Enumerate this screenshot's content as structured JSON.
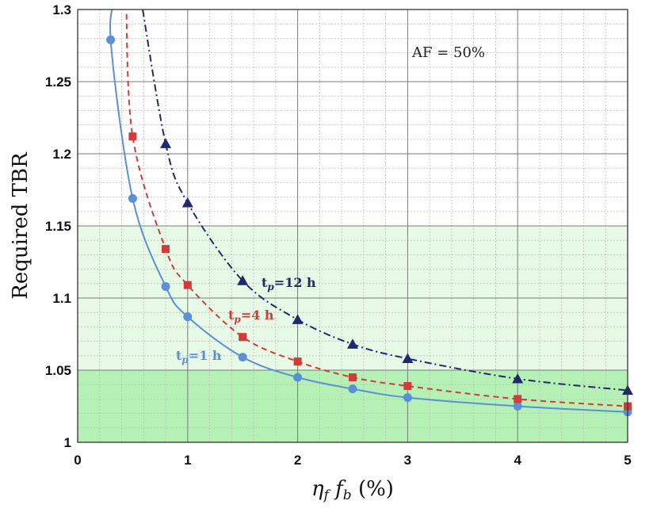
{
  "chart_data": {
    "type": "line",
    "title": "",
    "xlabel": "η_f f_b (%)",
    "ylabel": "Required TBR",
    "xlim": [
      0,
      5
    ],
    "ylim": [
      1,
      1.3
    ],
    "xticks": [
      "0",
      "1",
      "2",
      "3",
      "4",
      "5"
    ],
    "yticks": [
      "1",
      "1.05",
      "1.1",
      "1.15",
      "1.2",
      "1.25",
      "1.3"
    ],
    "grid": true,
    "annotation": "AF = 50%",
    "bands": [
      {
        "y0": 1.0,
        "y1": 1.05,
        "color": "#b5f0b5"
      },
      {
        "y0": 1.05,
        "y1": 1.15,
        "color": "#e6fae6"
      }
    ],
    "series": [
      {
        "name": "t_p=1 h",
        "label_main": "t",
        "label_sub": "p",
        "label_rest": "=1 h",
        "color": "#5b8fd6",
        "dash": "",
        "marker": "circle",
        "x": [
          0.3,
          0.5,
          0.8,
          1.0,
          1.5,
          2.0,
          2.5,
          3.0,
          4.0,
          5.0
        ],
        "y": [
          1.279,
          1.169,
          1.108,
          1.087,
          1.059,
          1.045,
          1.037,
          1.031,
          1.025,
          1.021
        ]
      },
      {
        "name": "t_p=4 h",
        "label_main": "t",
        "label_sub": "p",
        "label_rest": "=4 h",
        "color": "#d53a3a",
        "dash": "7,5",
        "marker": "square",
        "x": [
          0.5,
          0.8,
          1.0,
          1.5,
          2.0,
          2.5,
          3.0,
          4.0,
          5.0
        ],
        "y": [
          1.212,
          1.134,
          1.109,
          1.073,
          1.056,
          1.045,
          1.039,
          1.03,
          1.025
        ]
      },
      {
        "name": "t_p=12 h",
        "label_main": "t",
        "label_sub": "p",
        "label_rest": "=12 h",
        "color": "#1f2a6e",
        "dash": "9,4,2,4",
        "marker": "triangle",
        "x": [
          0.8,
          1.0,
          1.5,
          2.0,
          2.5,
          3.0,
          4.0,
          5.0
        ],
        "y": [
          1.207,
          1.166,
          1.112,
          1.085,
          1.068,
          1.058,
          1.044,
          1.036
        ]
      }
    ]
  }
}
